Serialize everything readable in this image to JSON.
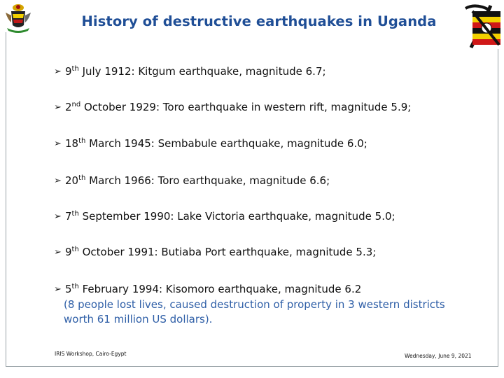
{
  "title": "History of destructive earthquakes in Uganda",
  "logos": {
    "left": "uganda-coat-of-arms",
    "right": "geological-survey-emblem-with-uganda-flag"
  },
  "bullet_icon": "arrow-bullet",
  "items": [
    {
      "day": "9",
      "suffix": "th",
      "rest": " July 1912:  Kitgum earthquake, magnitude 6.7;"
    },
    {
      "day": "2",
      "suffix": "nd",
      "rest": " October 1929: Toro earthquake in western rift, magnitude 5.9;"
    },
    {
      "day": "18",
      "suffix": "th",
      "rest": " March 1945: Sembabule earthquake, magnitude 6.0;"
    },
    {
      "day": "20",
      "suffix": "th",
      "rest": " March 1966: Toro earthquake, magnitude 6.6;"
    },
    {
      "day": "7",
      "suffix": "th",
      "rest": " September 1990: Lake Victoria earthquake, magnitude 5.0;"
    },
    {
      "day": "9",
      "suffix": "th",
      "rest": " October 1991: Butiaba Port earthquake, magnitude 5.3;"
    },
    {
      "day": "5",
      "suffix": "th",
      "rest": " February 1994: Kisomoro earthquake, magnitude 6.2"
    }
  ],
  "note": {
    "line1": "(8 people lost lives, caused destruction of property in 3 western districts",
    "line2": "worth 61 million US dollars)."
  },
  "footer": {
    "left": "IRIS Workshop, Cairo-Egypt",
    "right": "Wednesday, June 9, 2021"
  },
  "colors": {
    "title": "#1f4e96",
    "note": "#2f5fa7",
    "frame": "#9aa3a8"
  }
}
